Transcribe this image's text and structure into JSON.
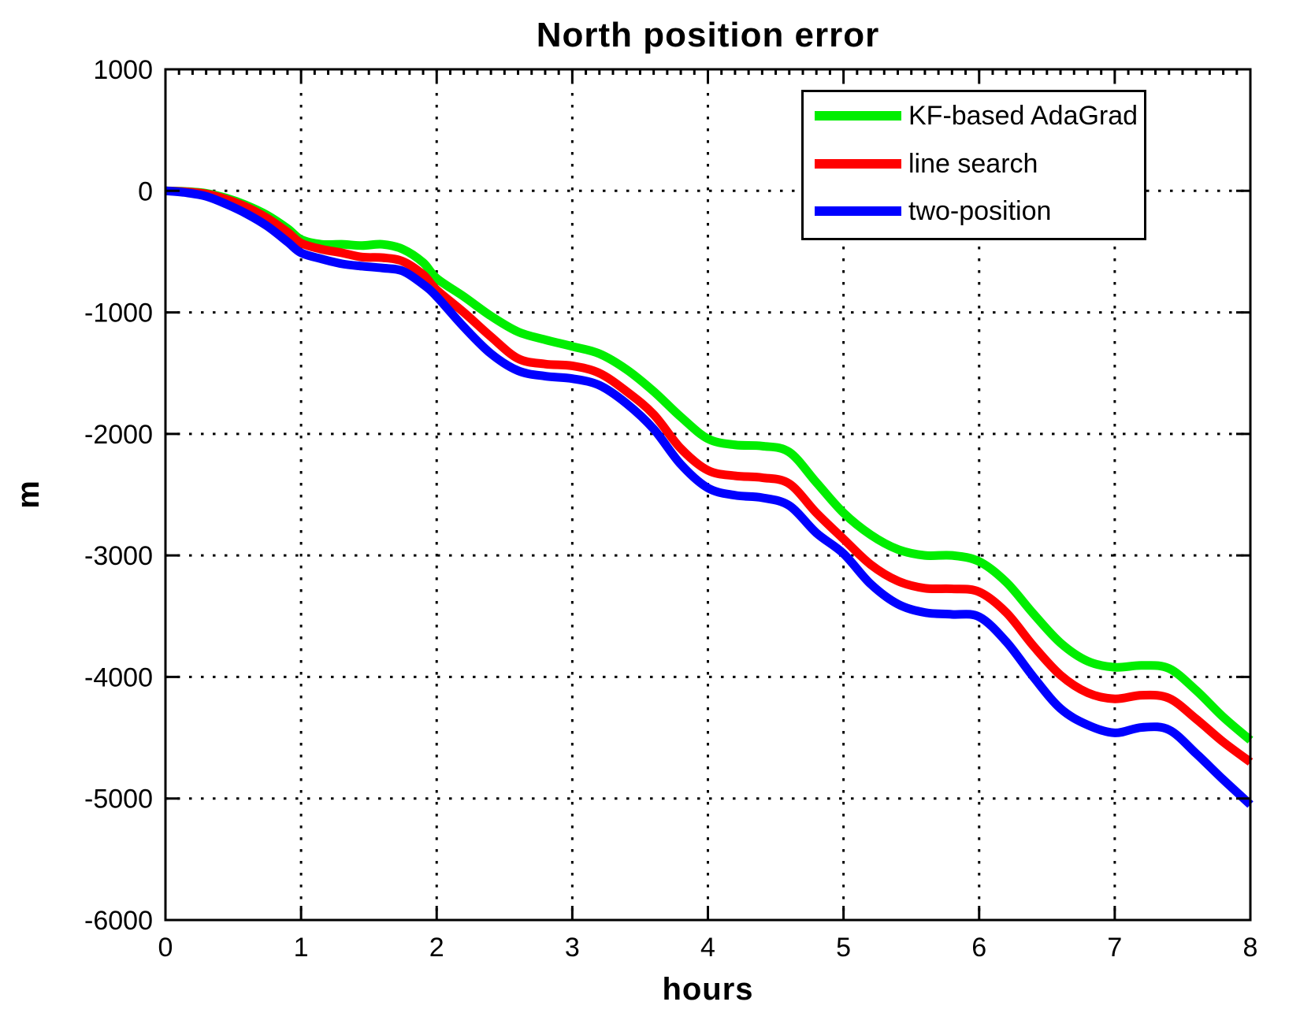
{
  "chart_data": {
    "type": "line",
    "title": "North position error",
    "xlabel": "hours",
    "ylabel": "m",
    "xlim": [
      0,
      8
    ],
    "ylim": [
      -6000,
      1000
    ],
    "x_ticks": [
      0,
      1,
      2,
      3,
      4,
      5,
      6,
      7,
      8
    ],
    "y_ticks": [
      1000,
      0,
      -1000,
      -2000,
      -3000,
      -4000,
      -5000,
      -6000
    ],
    "grid": true,
    "grid_style": "dotted",
    "axis_color": "#000000",
    "background": "#ffffff",
    "legend_position": "top-right",
    "x": [
      0,
      0.15,
      0.3,
      0.45,
      0.6,
      0.75,
      0.9,
      1.0,
      1.15,
      1.3,
      1.45,
      1.6,
      1.75,
      1.9,
      2.0,
      2.2,
      2.4,
      2.6,
      2.8,
      3.0,
      3.2,
      3.4,
      3.6,
      3.8,
      4.0,
      4.2,
      4.4,
      4.6,
      4.8,
      5.0,
      5.2,
      5.4,
      5.6,
      5.8,
      6.0,
      6.2,
      6.4,
      6.6,
      6.8,
      7.0,
      7.2,
      7.4,
      7.6,
      7.8,
      8.0
    ],
    "series": [
      {
        "name": "KF-based AdaGrad",
        "color": "#00ee00",
        "values": [
          0,
          -5,
          -20,
          -60,
          -120,
          -200,
          -310,
          -400,
          -440,
          -440,
          -450,
          -440,
          -480,
          -590,
          -720,
          -870,
          -1030,
          -1160,
          -1225,
          -1280,
          -1340,
          -1470,
          -1650,
          -1860,
          -2040,
          -2090,
          -2100,
          -2150,
          -2400,
          -2650,
          -2830,
          -2950,
          -3000,
          -3000,
          -3050,
          -3220,
          -3480,
          -3720,
          -3870,
          -3920,
          -3905,
          -3930,
          -4110,
          -4330,
          -4520
        ]
      },
      {
        "name": "line search",
        "color": "#ff0000",
        "values": [
          0,
          -8,
          -25,
          -70,
          -135,
          -225,
          -340,
          -430,
          -480,
          -510,
          -545,
          -550,
          -580,
          -690,
          -815,
          -1000,
          -1200,
          -1380,
          -1425,
          -1440,
          -1500,
          -1650,
          -1840,
          -2120,
          -2300,
          -2345,
          -2360,
          -2410,
          -2650,
          -2865,
          -3075,
          -3210,
          -3270,
          -3275,
          -3300,
          -3470,
          -3745,
          -3985,
          -4130,
          -4180,
          -4150,
          -4175,
          -4345,
          -4535,
          -4700
        ]
      },
      {
        "name": "two-position",
        "color": "#0000ff",
        "values": [
          0,
          -15,
          -45,
          -110,
          -190,
          -290,
          -420,
          -510,
          -560,
          -600,
          -620,
          -635,
          -660,
          -770,
          -870,
          -1120,
          -1340,
          -1480,
          -1525,
          -1545,
          -1600,
          -1750,
          -1960,
          -2250,
          -2445,
          -2505,
          -2525,
          -2590,
          -2815,
          -2985,
          -3235,
          -3400,
          -3470,
          -3485,
          -3505,
          -3710,
          -4000,
          -4260,
          -4395,
          -4460,
          -4415,
          -4435,
          -4630,
          -4845,
          -5050
        ]
      }
    ]
  }
}
